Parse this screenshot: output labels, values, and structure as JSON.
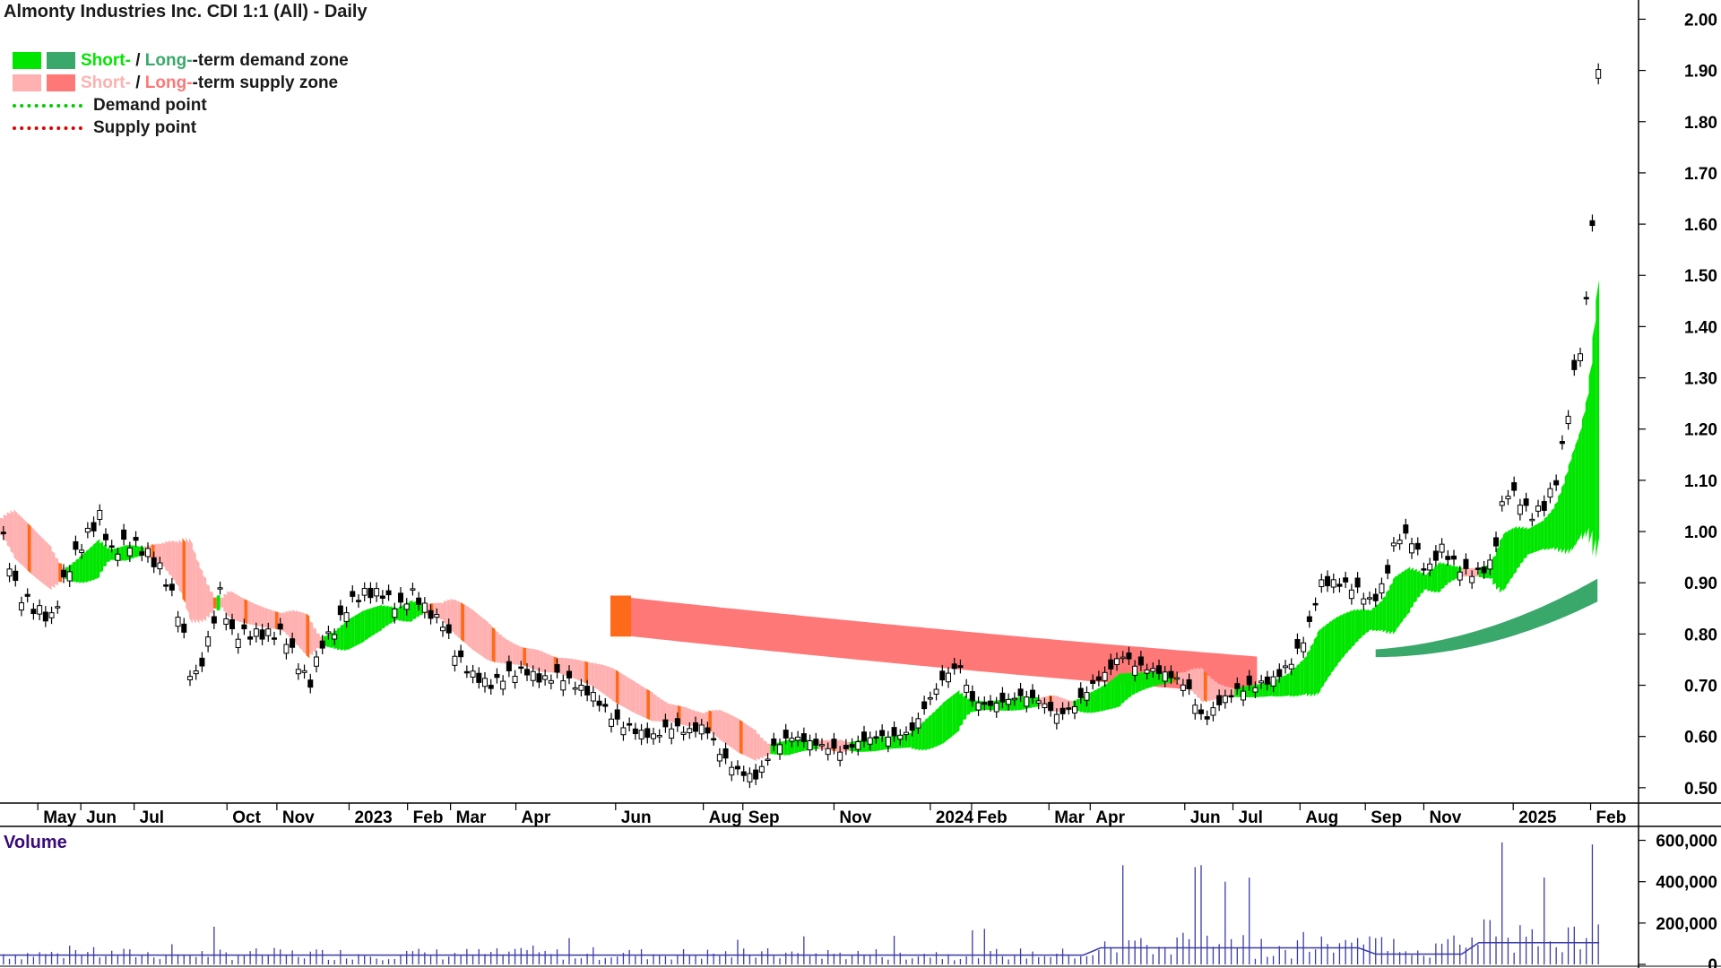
{
  "title": "Almonty Industries Inc. CDI 1:1 (All) - Daily",
  "legend": {
    "short_label": "Short-",
    "sep1": " / ",
    "long_label": "Long-",
    "demand_rest": "-term demand zone",
    "supply_rest": "-term supply zone",
    "demand_point": "Demand point",
    "supply_point": "Supply point"
  },
  "volume_label": "Volume",
  "colors": {
    "short_demand": "#00e600",
    "long_demand": "#3aa86b",
    "short_supply": "#ffb0b0",
    "long_supply": "#ff7878",
    "orange": "#ff6a1a",
    "demand_point": "#00cc00",
    "supply_point": "#dd0000",
    "volume": "#3b3ba8",
    "volume_label": "#3a0a7a",
    "frame": "#000000"
  },
  "chart_data": [
    {
      "type": "candlestick",
      "title": "Almonty Industries Inc. CDI 1:1 (All) - Daily",
      "ylim": [
        0.47,
        2.02
      ],
      "y_ticks": [
        "2.00",
        "1.90",
        "1.80",
        "1.70",
        "1.60",
        "1.50",
        "1.40",
        "1.30",
        "1.20",
        "1.10",
        "1.00",
        "0.90",
        "0.80",
        "0.70",
        "0.60",
        "0.50"
      ],
      "x_ticks": [
        "May",
        "Jun",
        "Jul",
        "Oct",
        "Nov",
        "2023",
        "Feb",
        "Mar",
        "Apr",
        "Jun",
        "Aug",
        "Sep",
        "Nov",
        "2024",
        "Feb",
        "Mar",
        "Apr",
        "Jun",
        "Jul",
        "Aug",
        "Sep",
        "Nov",
        "2025",
        "Feb"
      ],
      "x_tick_pos": [
        0.022,
        0.047,
        0.078,
        0.132,
        0.161,
        0.203,
        0.237,
        0.262,
        0.3,
        0.358,
        0.409,
        0.432,
        0.485,
        0.541,
        0.565,
        0.61,
        0.634,
        0.689,
        0.717,
        0.756,
        0.794,
        0.828,
        0.88,
        0.925
      ],
      "price_path": [
        [
          0.0,
          1.01
        ],
        [
          0.01,
          0.88
        ],
        [
          0.02,
          0.85
        ],
        [
          0.03,
          0.83
        ],
        [
          0.04,
          0.93
        ],
        [
          0.05,
          0.99
        ],
        [
          0.058,
          1.03
        ],
        [
          0.065,
          0.96
        ],
        [
          0.075,
          0.98
        ],
        [
          0.085,
          0.96
        ],
        [
          0.095,
          0.92
        ],
        [
          0.105,
          0.83
        ],
        [
          0.112,
          0.7
        ],
        [
          0.12,
          0.77
        ],
        [
          0.128,
          0.88
        ],
        [
          0.135,
          0.8
        ],
        [
          0.145,
          0.8
        ],
        [
          0.155,
          0.8
        ],
        [
          0.165,
          0.8
        ],
        [
          0.172,
          0.75
        ],
        [
          0.18,
          0.7
        ],
        [
          0.187,
          0.78
        ],
        [
          0.195,
          0.81
        ],
        [
          0.203,
          0.86
        ],
        [
          0.212,
          0.88
        ],
        [
          0.222,
          0.88
        ],
        [
          0.232,
          0.85
        ],
        [
          0.24,
          0.88
        ],
        [
          0.25,
          0.84
        ],
        [
          0.258,
          0.82
        ],
        [
          0.265,
          0.76
        ],
        [
          0.275,
          0.72
        ],
        [
          0.285,
          0.7
        ],
        [
          0.295,
          0.72
        ],
        [
          0.305,
          0.73
        ],
        [
          0.315,
          0.71
        ],
        [
          0.325,
          0.72
        ],
        [
          0.335,
          0.7
        ],
        [
          0.345,
          0.68
        ],
        [
          0.358,
          0.63
        ],
        [
          0.37,
          0.61
        ],
        [
          0.38,
          0.6
        ],
        [
          0.39,
          0.62
        ],
        [
          0.4,
          0.61
        ],
        [
          0.41,
          0.62
        ],
        [
          0.42,
          0.56
        ],
        [
          0.43,
          0.53
        ],
        [
          0.44,
          0.52
        ],
        [
          0.45,
          0.58
        ],
        [
          0.46,
          0.6
        ],
        [
          0.47,
          0.59
        ],
        [
          0.48,
          0.58
        ],
        [
          0.49,
          0.57
        ],
        [
          0.5,
          0.59
        ],
        [
          0.51,
          0.6
        ],
        [
          0.52,
          0.6
        ],
        [
          0.53,
          0.61
        ],
        [
          0.54,
          0.67
        ],
        [
          0.55,
          0.72
        ],
        [
          0.558,
          0.74
        ],
        [
          0.565,
          0.67
        ],
        [
          0.575,
          0.66
        ],
        [
          0.585,
          0.67
        ],
        [
          0.595,
          0.68
        ],
        [
          0.605,
          0.67
        ],
        [
          0.615,
          0.64
        ],
        [
          0.625,
          0.66
        ],
        [
          0.635,
          0.7
        ],
        [
          0.645,
          0.73
        ],
        [
          0.652,
          0.76
        ],
        [
          0.66,
          0.74
        ],
        [
          0.67,
          0.73
        ],
        [
          0.68,
          0.72
        ],
        [
          0.69,
          0.7
        ],
        [
          0.7,
          0.63
        ],
        [
          0.71,
          0.67
        ],
        [
          0.72,
          0.69
        ],
        [
          0.73,
          0.7
        ],
        [
          0.74,
          0.71
        ],
        [
          0.75,
          0.74
        ],
        [
          0.76,
          0.8
        ],
        [
          0.768,
          0.9
        ],
        [
          0.778,
          0.9
        ],
        [
          0.788,
          0.89
        ],
        [
          0.798,
          0.86
        ],
        [
          0.805,
          0.9
        ],
        [
          0.812,
          0.99
        ],
        [
          0.82,
          0.99
        ],
        [
          0.83,
          0.92
        ],
        [
          0.838,
          0.97
        ],
        [
          0.845,
          0.94
        ],
        [
          0.852,
          0.92
        ],
        [
          0.86,
          0.92
        ],
        [
          0.868,
          0.94
        ],
        [
          0.875,
          1.08
        ],
        [
          0.882,
          1.07
        ],
        [
          0.89,
          1.03
        ],
        [
          0.898,
          1.05
        ],
        [
          0.905,
          1.1
        ],
        [
          0.91,
          1.19
        ],
        [
          0.915,
          1.3
        ],
        [
          0.92,
          1.37
        ],
        [
          0.925,
          1.52
        ],
        [
          0.928,
          1.78
        ],
        [
          0.93,
          1.93
        ]
      ]
    },
    {
      "type": "bar",
      "title": "Volume",
      "ylim": [
        0,
        650000
      ],
      "y_ticks": [
        "600,000",
        "400,000",
        "200,000",
        "0"
      ],
      "spikes": [
        [
          0.653,
          480000
        ],
        [
          0.695,
          470000
        ],
        [
          0.698,
          480000
        ],
        [
          0.713,
          400000
        ],
        [
          0.728,
          420000
        ],
        [
          0.873,
          590000
        ],
        [
          0.898,
          420000
        ],
        [
          0.925,
          580000
        ]
      ]
    }
  ]
}
